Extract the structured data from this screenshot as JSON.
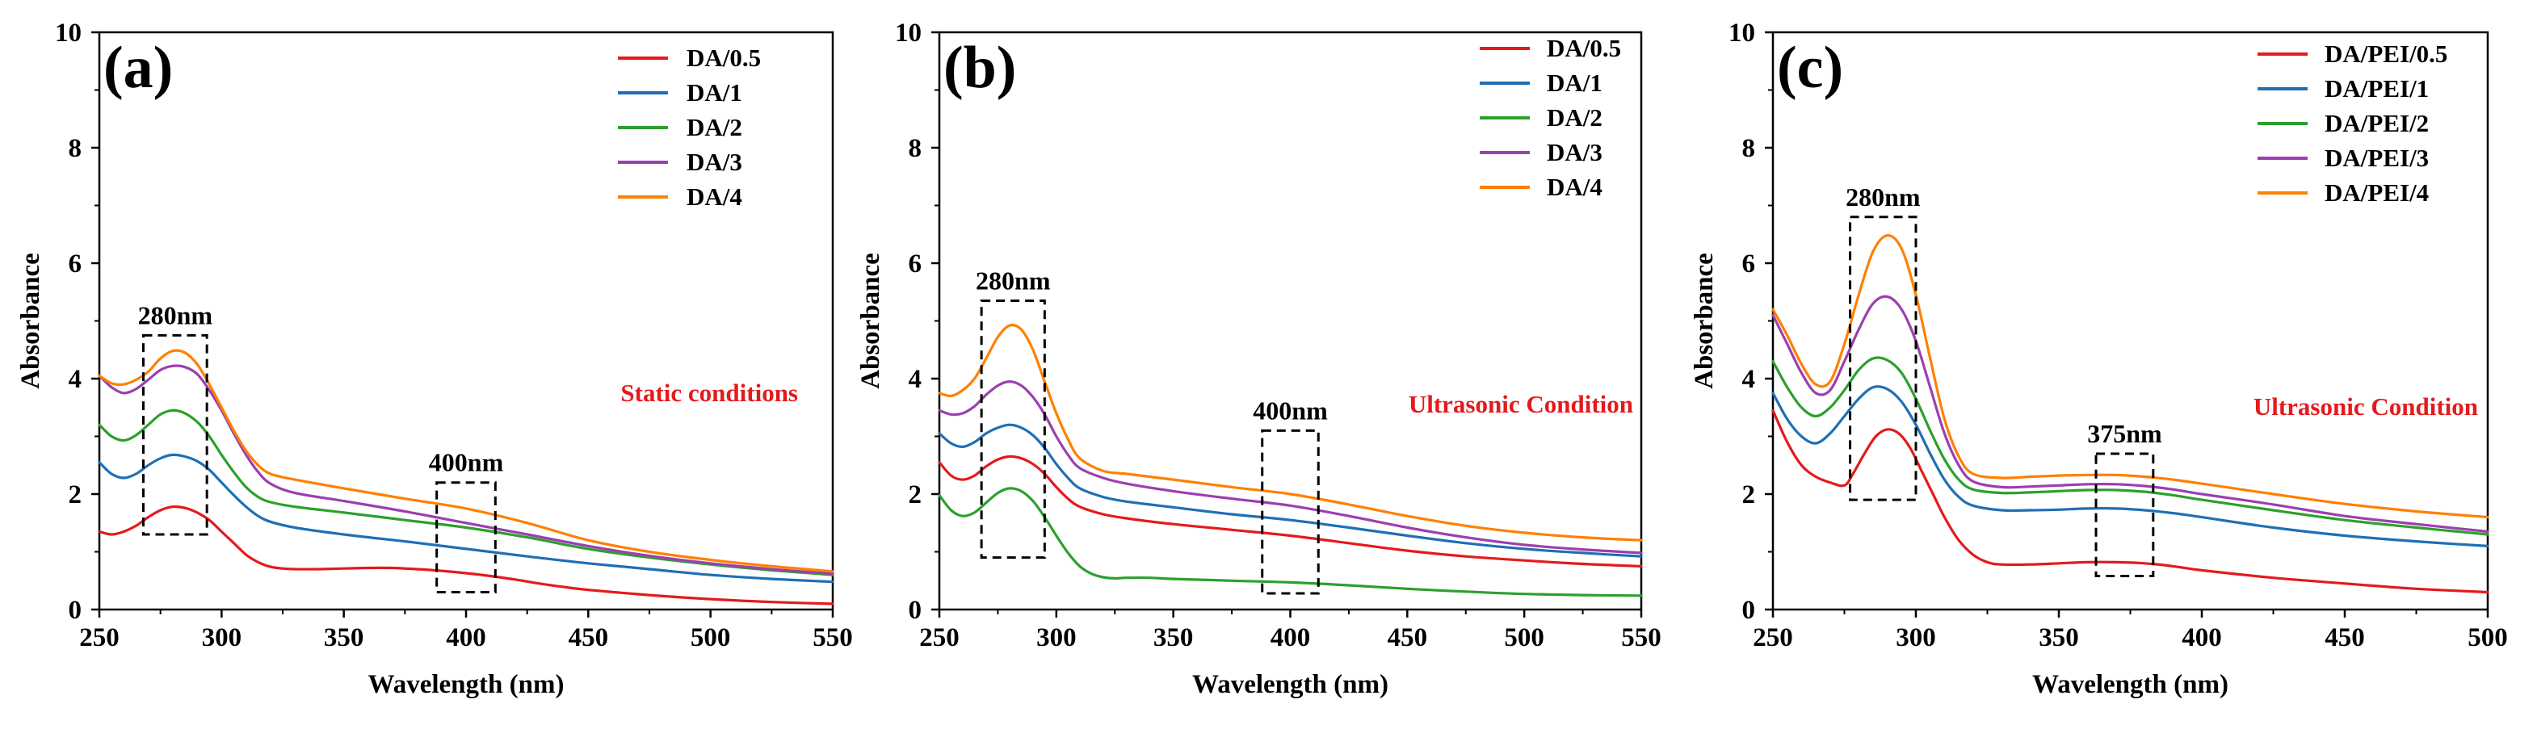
{
  "chart_data": [
    {
      "type": "line",
      "panel_label": "(a)",
      "xlabel": "Wavelength (nm)",
      "ylabel": "Absorbance",
      "xlim": [
        250,
        550
      ],
      "ylim": [
        0,
        10
      ],
      "xticks": [
        250,
        300,
        350,
        400,
        450,
        500,
        550
      ],
      "yticks": [
        0,
        2,
        4,
        6,
        8,
        10
      ],
      "legend_position": "top-right",
      "condition_label": "Static conditions",
      "condition_color": "#e41a1c",
      "annotations": [
        {
          "text": "280nm",
          "box_x": [
            268,
            294
          ],
          "box_y": [
            1.3,
            4.75
          ]
        },
        {
          "text": "400nm",
          "box_x": [
            388,
            412
          ],
          "box_y": [
            0.3,
            2.2
          ]
        }
      ],
      "series": [
        {
          "name": "DA/0.5",
          "color": "#e41a1c",
          "x": [
            250,
            255,
            260,
            265,
            270,
            275,
            280,
            285,
            290,
            295,
            300,
            305,
            310,
            315,
            320,
            325,
            330,
            340,
            350,
            360,
            370,
            380,
            390,
            400,
            410,
            420,
            430,
            440,
            450,
            475,
            500,
            525,
            550
          ],
          "y": [
            1.35,
            1.3,
            1.35,
            1.45,
            1.6,
            1.72,
            1.78,
            1.76,
            1.68,
            1.55,
            1.35,
            1.15,
            0.95,
            0.82,
            0.74,
            0.71,
            0.7,
            0.7,
            0.71,
            0.72,
            0.72,
            0.7,
            0.67,
            0.63,
            0.58,
            0.52,
            0.45,
            0.39,
            0.34,
            0.25,
            0.18,
            0.13,
            0.1
          ]
        },
        {
          "name": "DA/1",
          "color": "#1f6fb4",
          "x": [
            250,
            255,
            260,
            265,
            270,
            275,
            280,
            285,
            290,
            295,
            300,
            305,
            310,
            315,
            320,
            330,
            350,
            375,
            400,
            425,
            450,
            475,
            500,
            525,
            550
          ],
          "y": [
            2.55,
            2.35,
            2.28,
            2.35,
            2.5,
            2.62,
            2.68,
            2.65,
            2.57,
            2.42,
            2.2,
            1.98,
            1.78,
            1.62,
            1.52,
            1.42,
            1.3,
            1.18,
            1.05,
            0.92,
            0.8,
            0.7,
            0.6,
            0.53,
            0.48
          ]
        },
        {
          "name": "DA/2",
          "color": "#2ca02c",
          "x": [
            250,
            255,
            260,
            265,
            270,
            275,
            280,
            285,
            290,
            295,
            300,
            305,
            310,
            315,
            320,
            330,
            350,
            375,
            400,
            425,
            450,
            475,
            500,
            525,
            550
          ],
          "y": [
            3.2,
            3.0,
            2.93,
            3.02,
            3.2,
            3.38,
            3.45,
            3.4,
            3.25,
            3.0,
            2.68,
            2.38,
            2.12,
            1.95,
            1.86,
            1.78,
            1.68,
            1.55,
            1.42,
            1.25,
            1.05,
            0.9,
            0.78,
            0.68,
            0.6
          ]
        },
        {
          "name": "DA/3",
          "color": "#9c3fb0",
          "x": [
            250,
            255,
            260,
            265,
            270,
            275,
            280,
            285,
            290,
            295,
            300,
            305,
            310,
            315,
            320,
            330,
            350,
            375,
            400,
            425,
            450,
            475,
            500,
            525,
            550
          ],
          "y": [
            4.05,
            3.85,
            3.75,
            3.82,
            3.98,
            4.15,
            4.22,
            4.2,
            4.08,
            3.8,
            3.45,
            3.05,
            2.68,
            2.38,
            2.18,
            2.02,
            1.88,
            1.7,
            1.5,
            1.3,
            1.1,
            0.93,
            0.8,
            0.7,
            0.62
          ]
        },
        {
          "name": "DA/4",
          "color": "#ff8000",
          "x": [
            250,
            255,
            260,
            265,
            270,
            275,
            280,
            285,
            290,
            295,
            300,
            305,
            310,
            315,
            320,
            330,
            350,
            375,
            400,
            425,
            450,
            475,
            500,
            525,
            550
          ],
          "y": [
            4.05,
            3.92,
            3.9,
            3.98,
            4.12,
            4.35,
            4.48,
            4.45,
            4.25,
            3.9,
            3.5,
            3.1,
            2.75,
            2.5,
            2.35,
            2.25,
            2.1,
            1.92,
            1.75,
            1.5,
            1.2,
            1.0,
            0.86,
            0.75,
            0.66
          ]
        }
      ]
    },
    {
      "type": "line",
      "panel_label": "(b)",
      "xlabel": "Wavelength (nm)",
      "ylabel": "Absorbance",
      "xlim": [
        250,
        550
      ],
      "ylim": [
        0,
        10
      ],
      "xticks": [
        250,
        300,
        350,
        400,
        450,
        500,
        550
      ],
      "yticks": [
        0,
        2,
        4,
        6,
        8,
        10
      ],
      "legend_position": "top-right",
      "condition_label": "Ultrasonic Condition",
      "condition_color": "#e41a1c",
      "annotations": [
        {
          "text": "280nm",
          "box_x": [
            268,
            295
          ],
          "box_y": [
            0.9,
            5.35
          ]
        },
        {
          "text": "400nm",
          "box_x": [
            388,
            412
          ],
          "box_y": [
            0.28,
            3.1
          ]
        }
      ],
      "series": [
        {
          "name": "DA/0.5",
          "color": "#e41a1c",
          "x": [
            250,
            255,
            260,
            265,
            270,
            275,
            280,
            285,
            290,
            295,
            300,
            305,
            310,
            320,
            330,
            350,
            375,
            400,
            425,
            450,
            475,
            500,
            525,
            550
          ],
          "y": [
            2.55,
            2.32,
            2.25,
            2.32,
            2.48,
            2.6,
            2.65,
            2.62,
            2.52,
            2.35,
            2.12,
            1.92,
            1.78,
            1.65,
            1.58,
            1.48,
            1.38,
            1.28,
            1.15,
            1.02,
            0.92,
            0.85,
            0.79,
            0.75
          ]
        },
        {
          "name": "DA/1",
          "color": "#1f6fb4",
          "x": [
            250,
            255,
            260,
            265,
            270,
            275,
            280,
            285,
            290,
            295,
            300,
            305,
            310,
            320,
            330,
            350,
            375,
            400,
            425,
            450,
            475,
            500,
            525,
            550
          ],
          "y": [
            3.05,
            2.88,
            2.82,
            2.9,
            3.05,
            3.15,
            3.2,
            3.15,
            3.02,
            2.8,
            2.52,
            2.28,
            2.1,
            1.95,
            1.87,
            1.77,
            1.65,
            1.55,
            1.42,
            1.28,
            1.15,
            1.05,
            0.98,
            0.92
          ]
        },
        {
          "name": "DA/2",
          "color": "#2ca02c",
          "x": [
            250,
            255,
            260,
            265,
            270,
            275,
            280,
            285,
            290,
            295,
            300,
            305,
            310,
            315,
            320,
            325,
            330,
            340,
            350,
            375,
            400,
            425,
            450,
            475,
            500,
            525,
            550
          ],
          "y": [
            1.98,
            1.72,
            1.62,
            1.68,
            1.85,
            2.02,
            2.1,
            2.05,
            1.88,
            1.6,
            1.28,
            0.98,
            0.75,
            0.62,
            0.56,
            0.54,
            0.55,
            0.55,
            0.53,
            0.5,
            0.47,
            0.42,
            0.36,
            0.31,
            0.27,
            0.25,
            0.24
          ]
        },
        {
          "name": "DA/3",
          "color": "#9c3fb0",
          "x": [
            250,
            255,
            260,
            265,
            270,
            275,
            280,
            285,
            290,
            295,
            300,
            305,
            310,
            320,
            330,
            350,
            375,
            400,
            425,
            450,
            475,
            500,
            525,
            550
          ],
          "y": [
            3.45,
            3.38,
            3.4,
            3.52,
            3.72,
            3.88,
            3.95,
            3.88,
            3.68,
            3.38,
            3.0,
            2.68,
            2.45,
            2.28,
            2.18,
            2.05,
            1.92,
            1.8,
            1.62,
            1.42,
            1.25,
            1.12,
            1.04,
            0.98
          ]
        },
        {
          "name": "DA/4",
          "color": "#ff8000",
          "x": [
            250,
            255,
            260,
            265,
            270,
            275,
            280,
            285,
            290,
            295,
            300,
            305,
            310,
            320,
            330,
            350,
            375,
            400,
            425,
            450,
            475,
            500,
            525,
            550
          ],
          "y": [
            3.75,
            3.7,
            3.8,
            4.0,
            4.35,
            4.72,
            4.92,
            4.85,
            4.5,
            3.95,
            3.4,
            2.95,
            2.62,
            2.4,
            2.35,
            2.25,
            2.12,
            2.0,
            1.82,
            1.62,
            1.45,
            1.33,
            1.25,
            1.2
          ]
        }
      ]
    },
    {
      "type": "line",
      "panel_label": "(c)",
      "xlabel": "Wavelength (nm)",
      "ylabel": "Absorbance",
      "xlim": [
        250,
        500
      ],
      "ylim": [
        0,
        10
      ],
      "xticks": [
        250,
        300,
        350,
        400,
        450,
        500
      ],
      "yticks": [
        0,
        2,
        4,
        6,
        8,
        10
      ],
      "legend_position": "top-right",
      "condition_label": "Ultrasonic Condition",
      "condition_color": "#e41a1c",
      "annotations": [
        {
          "text": "280nm",
          "box_x": [
            277,
            300
          ],
          "box_y": [
            1.9,
            6.8
          ]
        },
        {
          "text": "375nm",
          "box_x": [
            363,
            383
          ],
          "box_y": [
            0.58,
            2.7
          ]
        }
      ],
      "series": [
        {
          "name": "DA/PEI/0.5",
          "color": "#e41a1c",
          "x": [
            250,
            255,
            260,
            265,
            270,
            275,
            278,
            282,
            286,
            290,
            294,
            298,
            302,
            306,
            310,
            315,
            320,
            325,
            330,
            340,
            350,
            360,
            370,
            380,
            390,
            400,
            425,
            450,
            475,
            500
          ],
          "y": [
            3.45,
            2.9,
            2.5,
            2.3,
            2.2,
            2.15,
            2.35,
            2.7,
            3.0,
            3.12,
            3.05,
            2.8,
            2.4,
            2.0,
            1.6,
            1.2,
            0.95,
            0.82,
            0.78,
            0.78,
            0.8,
            0.82,
            0.82,
            0.8,
            0.75,
            0.68,
            0.55,
            0.45,
            0.36,
            0.3
          ]
        },
        {
          "name": "DA/PEI/1",
          "color": "#1f6fb4",
          "x": [
            250,
            255,
            260,
            265,
            270,
            275,
            280,
            285,
            290,
            295,
            300,
            305,
            310,
            315,
            320,
            330,
            340,
            350,
            360,
            370,
            380,
            390,
            400,
            425,
            450,
            475,
            500
          ],
          "y": [
            3.75,
            3.3,
            3.0,
            2.88,
            3.05,
            3.35,
            3.65,
            3.85,
            3.82,
            3.6,
            3.2,
            2.7,
            2.25,
            1.95,
            1.8,
            1.72,
            1.72,
            1.73,
            1.75,
            1.75,
            1.72,
            1.67,
            1.6,
            1.42,
            1.28,
            1.18,
            1.1
          ]
        },
        {
          "name": "DA/PEI/2",
          "color": "#2ca02c",
          "x": [
            250,
            255,
            260,
            265,
            270,
            275,
            280,
            285,
            290,
            295,
            300,
            305,
            310,
            315,
            320,
            330,
            340,
            350,
            360,
            370,
            380,
            390,
            400,
            425,
            450,
            475,
            500
          ],
          "y": [
            4.3,
            3.85,
            3.5,
            3.35,
            3.5,
            3.8,
            4.15,
            4.35,
            4.32,
            4.1,
            3.65,
            3.1,
            2.6,
            2.25,
            2.08,
            2.02,
            2.03,
            2.05,
            2.07,
            2.07,
            2.04,
            1.98,
            1.9,
            1.72,
            1.55,
            1.42,
            1.3
          ]
        },
        {
          "name": "DA/PEI/3",
          "color": "#9c3fb0",
          "x": [
            250,
            255,
            260,
            265,
            270,
            275,
            280,
            285,
            290,
            295,
            300,
            305,
            310,
            315,
            320,
            330,
            340,
            350,
            360,
            370,
            380,
            390,
            400,
            425,
            450,
            475,
            500
          ],
          "y": [
            5.1,
            4.6,
            4.1,
            3.75,
            3.8,
            4.3,
            4.85,
            5.3,
            5.42,
            5.2,
            4.65,
            3.85,
            3.05,
            2.5,
            2.22,
            2.12,
            2.13,
            2.15,
            2.17,
            2.17,
            2.14,
            2.08,
            2.0,
            1.82,
            1.62,
            1.48,
            1.35
          ]
        },
        {
          "name": "DA/PEI/4",
          "color": "#ff8000",
          "x": [
            250,
            255,
            260,
            265,
            270,
            275,
            280,
            285,
            290,
            295,
            300,
            305,
            310,
            315,
            320,
            330,
            340,
            350,
            360,
            370,
            380,
            390,
            400,
            425,
            450,
            475,
            500
          ],
          "y": [
            5.2,
            4.75,
            4.25,
            3.9,
            3.95,
            4.6,
            5.45,
            6.2,
            6.48,
            6.25,
            5.45,
            4.35,
            3.3,
            2.65,
            2.35,
            2.28,
            2.3,
            2.32,
            2.33,
            2.33,
            2.3,
            2.25,
            2.18,
            2.0,
            1.83,
            1.7,
            1.6
          ]
        }
      ]
    }
  ]
}
